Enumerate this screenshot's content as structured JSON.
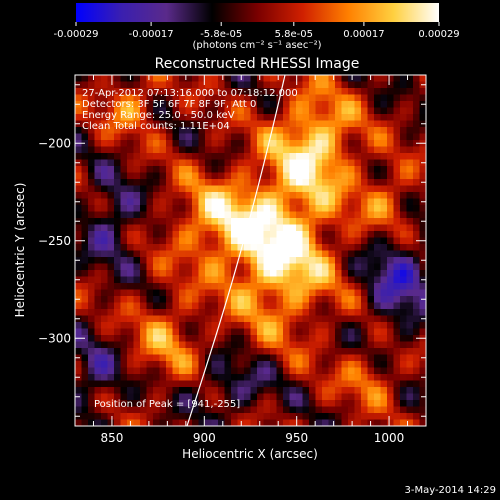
{
  "colorbar": {
    "ticks": [
      "-0.00029",
      "-0.00017",
      "-5.8e-05",
      "5.8e-05",
      "0.00017",
      "0.00029"
    ],
    "units_label": "(photons cm⁻² s⁻¹ asec⁻²)",
    "colors": [
      "#0000ff",
      "#3a1fb0",
      "#5a2a8a",
      "#000000",
      "#7a0000",
      "#d02000",
      "#ff8000",
      "#ffd040",
      "#ffffff"
    ]
  },
  "chart_data": {
    "type": "heatmap",
    "title": "Reconstructed RHESSI Image",
    "xlabel": "Heliocentric X (arcsec)",
    "ylabel": "Heliocentric Y (arcsec)",
    "xlim": [
      830,
      1020
    ],
    "ylim": [
      -345,
      -165
    ],
    "xticks": [
      850,
      900,
      950,
      1000
    ],
    "yticks": [
      -200,
      -250,
      -300
    ],
    "tick_labels": {
      "x": [
        "850",
        "900",
        "950",
        "1000"
      ],
      "y": [
        "−200",
        "−250",
        "−300"
      ]
    },
    "value_range": [
      -0.00029,
      0.00029
    ],
    "annotations": [
      "27-Apr-2012 07:13:16.000 to 07:18:12.000",
      "Detectors: 3F 5F 6F 7F 8F 9F, Att 0",
      "Energy Range: 25.0 - 50.0 keV",
      "Clean    Total counts: 1.11E+04"
    ],
    "peak_label": "Position of Peak = [941,-255]",
    "peak": [
      941,
      -255
    ]
  },
  "footer": {
    "date": "3-May-2014 14:29"
  }
}
